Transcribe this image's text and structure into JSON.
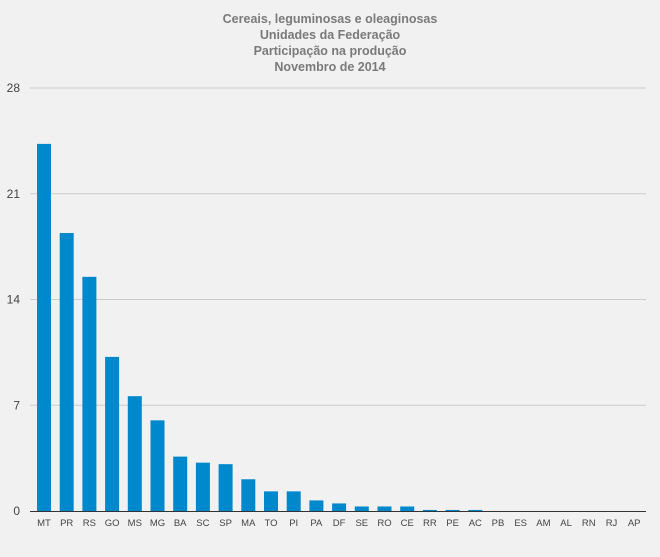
{
  "chart_data": {
    "type": "bar",
    "title": [
      "Cereais, leguminosas e oleaginosas",
      "Unidades da Federação",
      "Participação na produção",
      "Novembro de 2014"
    ],
    "categories": [
      "MT",
      "PR",
      "RS",
      "GO",
      "MS",
      "MG",
      "BA",
      "SC",
      "SP",
      "MA",
      "TO",
      "PI",
      "PA",
      "DF",
      "SE",
      "RO",
      "CE",
      "RR",
      "PE",
      "AC",
      "PB",
      "ES",
      "AM",
      "AL",
      "RN",
      "RJ",
      "AP"
    ],
    "values": [
      24.3,
      18.4,
      15.5,
      10.2,
      7.6,
      6.0,
      3.6,
      3.2,
      3.1,
      2.1,
      1.3,
      1.3,
      0.7,
      0.5,
      0.3,
      0.3,
      0.3,
      0.07,
      0.07,
      0.07,
      0,
      0,
      0,
      0,
      0,
      0,
      0
    ],
    "yticks": [
      0,
      7,
      14,
      21,
      28
    ],
    "ylim": [
      0,
      28
    ],
    "xlabel": "",
    "ylabel": "",
    "grid": true,
    "bar_color": "#0088cc"
  }
}
